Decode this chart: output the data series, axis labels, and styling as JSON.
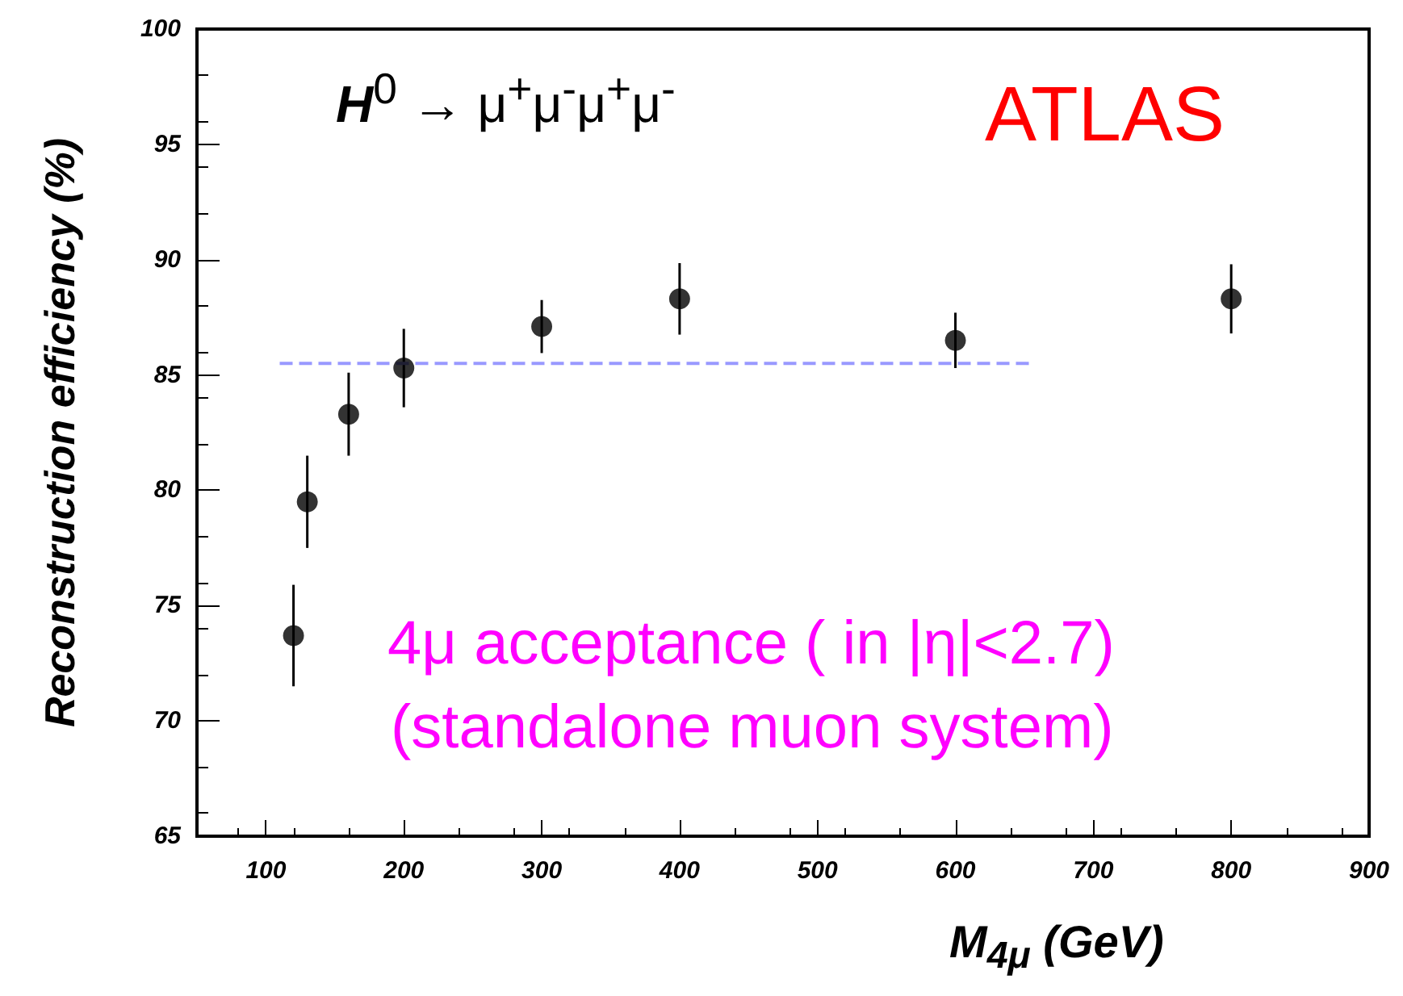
{
  "chart_data": {
    "type": "scatter",
    "xlabel": "M$_{4μ}$ (GeV)",
    "ylabel": "Reconstruction efficiency (%)",
    "annotations": [
      "H$^{0}$ → μ$^{+}$μ$^{-}$μ$^{+}$μ$^{-}$",
      "ATLAS",
      "4μ acceptance ( in |η|<2.7)",
      "(standalone muon system)"
    ],
    "series": [
      {
        "color": "#000000",
        "x": [
          120,
          130,
          160,
          200,
          300,
          400,
          600,
          800
        ],
        "values": [
          73.7,
          79.5,
          83.3,
          85.3,
          87.1,
          88.3,
          86.5,
          88.3
        ],
        "errors": [
          2.2,
          2.0,
          1.8,
          1.7,
          1.15,
          1.55,
          1.2,
          1.5
        ]
      },
      {
        "type": "line",
        "color": "#9999ff",
        "line_style": "dashed",
        "marker": "none",
        "x": [
          110,
          655
        ],
        "values": [
          85.5,
          85.5
        ]
      }
    ],
    "marker": "circle",
    "xlim": [
      50,
      900
    ],
    "xticks": [
      100,
      200,
      300,
      400,
      500,
      600,
      700,
      800,
      900
    ],
    "ylim": [
      65,
      100
    ],
    "yticks": [
      65,
      70,
      75,
      80,
      85,
      90,
      95,
      100
    ],
    "grid": false
  }
}
